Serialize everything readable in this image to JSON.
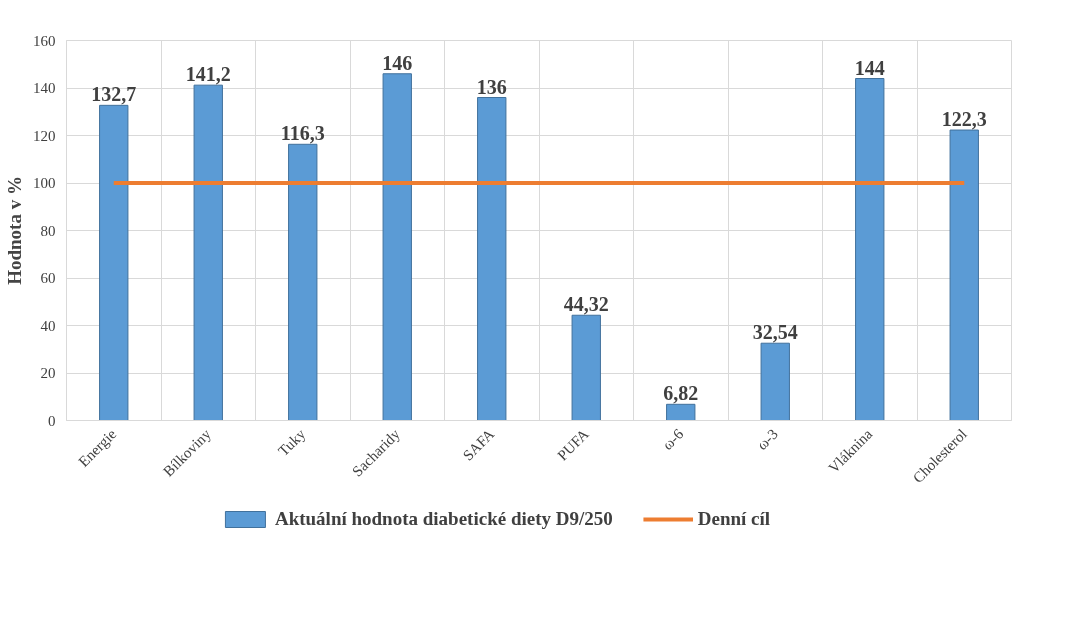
{
  "chart_data": {
    "type": "bar",
    "ylabel": "Hodnota v %",
    "categories": [
      "Energie",
      "Bílkoviny",
      "Tuky",
      "Sacharidy",
      "SAFA",
      "PUFA",
      "ω-6",
      "ω-3",
      "Vláknina",
      "Cholesterol"
    ],
    "series": [
      {
        "name": "Aktuální hodnota diabetické diety D9/250",
        "color": "#5b9bd5",
        "values": [
          132.7,
          141.2,
          116.3,
          146,
          136,
          44.32,
          6.82,
          32.54,
          144,
          122.3
        ],
        "value_labels": [
          "132,7",
          "141,2",
          "116,3",
          "146",
          "136",
          "44,32",
          "6,82",
          "32,54",
          "144",
          "122,3"
        ]
      },
      {
        "name": "Denní cíl",
        "color": "#ed7d31",
        "type": "line",
        "values": [
          100,
          100,
          100,
          100,
          100,
          100,
          100,
          100,
          100,
          100
        ]
      }
    ],
    "ylim": [
      0,
      160
    ],
    "yticks": [
      0,
      20,
      40,
      60,
      80,
      100,
      120,
      140,
      160
    ],
    "grid": true,
    "legend": "bottom",
    "marker": "none",
    "line_style": "solid"
  }
}
